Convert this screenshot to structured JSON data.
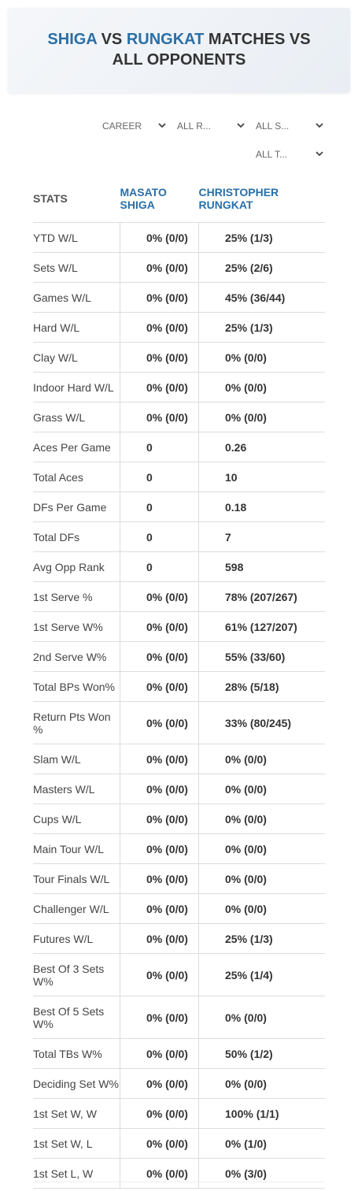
{
  "header": {
    "title": {
      "player1": "SHIGA",
      "vs": "VS",
      "player2": "RUNGKAT",
      "rest": "MATCHES VS ALL OPPONENTS"
    }
  },
  "filters": [
    "CAREER",
    "ALL R...",
    "ALL S...",
    "ALL T..."
  ],
  "table": {
    "columns": [
      "STATS",
      "MASATO SHIGA",
      "CHRISTOPHER RUNGKAT"
    ],
    "rows": [
      [
        "YTD W/L",
        "0% (0/0)",
        "25% (1/3)"
      ],
      [
        "Sets W/L",
        "0% (0/0)",
        "25% (2/6)"
      ],
      [
        "Games W/L",
        "0% (0/0)",
        "45% (36/44)"
      ],
      [
        "Hard W/L",
        "0% (0/0)",
        "25% (1/3)"
      ],
      [
        "Clay W/L",
        "0% (0/0)",
        "0% (0/0)"
      ],
      [
        "Indoor Hard W/L",
        "0% (0/0)",
        "0% (0/0)"
      ],
      [
        "Grass W/L",
        "0% (0/0)",
        "0% (0/0)"
      ],
      [
        "Aces Per Game",
        "0",
        "0.26"
      ],
      [
        "Total Aces",
        "0",
        "10"
      ],
      [
        "DFs Per Game",
        "0",
        "0.18"
      ],
      [
        "Total DFs",
        "0",
        "7"
      ],
      [
        "Avg Opp Rank",
        "0",
        "598"
      ],
      [
        "1st Serve %",
        "0% (0/0)",
        "78% (207/267)"
      ],
      [
        "1st Serve W%",
        "0% (0/0)",
        "61% (127/207)"
      ],
      [
        "2nd Serve W%",
        "0% (0/0)",
        "55% (33/60)"
      ],
      [
        "Total BPs Won%",
        "0% (0/0)",
        "28% (5/18)"
      ],
      [
        "Return Pts Won %",
        "0% (0/0)",
        "33% (80/245)"
      ],
      [
        "Slam W/L",
        "0% (0/0)",
        "0% (0/0)"
      ],
      [
        "Masters W/L",
        "0% (0/0)",
        "0% (0/0)"
      ],
      [
        "Cups W/L",
        "0% (0/0)",
        "0% (0/0)"
      ],
      [
        "Main Tour W/L",
        "0% (0/0)",
        "0% (0/0)"
      ],
      [
        "Tour Finals W/L",
        "0% (0/0)",
        "0% (0/0)"
      ],
      [
        "Challenger W/L",
        "0% (0/0)",
        "0% (0/0)"
      ],
      [
        "Futures W/L",
        "0% (0/0)",
        "25% (1/3)"
      ],
      [
        "Best Of 3 Sets W%",
        "0% (0/0)",
        "25% (1/4)"
      ],
      [
        "Best Of 5 Sets W%",
        "0% (0/0)",
        "0% (0/0)"
      ],
      [
        "Total TBs W%",
        "0% (0/0)",
        "50% (1/2)"
      ],
      [
        "Deciding Set W%",
        "0% (0/0)",
        "0% (0/0)"
      ],
      [
        "1st Set W, W",
        "0% (0/0)",
        "100% (1/1)"
      ],
      [
        "1st Set W, L",
        "0% (0/0)",
        "0% (1/0)"
      ],
      [
        "1st Set L, W",
        "0% (0/0)",
        "0% (3/0)"
      ]
    ]
  }
}
